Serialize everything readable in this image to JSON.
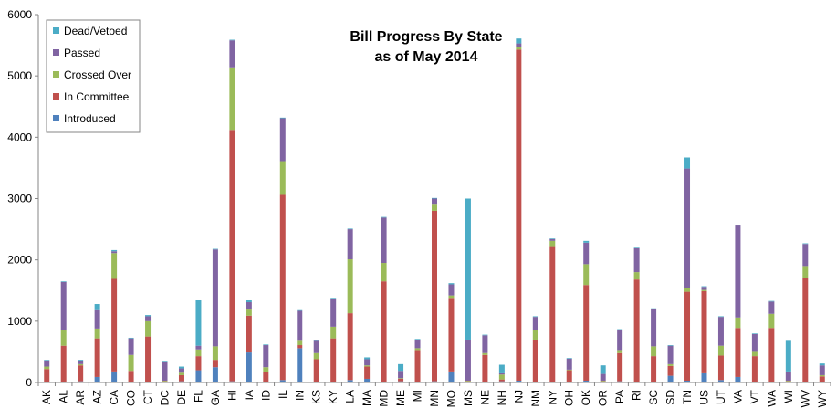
{
  "chart_data": {
    "type": "bar",
    "stacked": true,
    "title": [
      "Bill Progress By State",
      "as of May 2014"
    ],
    "ylim": [
      0,
      6000
    ],
    "yticks": [
      0,
      1000,
      2000,
      3000,
      4000,
      5000,
      6000
    ],
    "grid": false,
    "legend_position": "top-left",
    "categories": [
      "AK",
      "AL",
      "AR",
      "AZ",
      "CA",
      "CO",
      "CT",
      "DC",
      "DE",
      "FL",
      "GA",
      "HI",
      "IA",
      "ID",
      "IL",
      "IN",
      "KS",
      "KY",
      "LA",
      "MA",
      "MD",
      "ME",
      "MI",
      "MN",
      "MO",
      "MS",
      "NE",
      "NH",
      "NJ",
      "NM",
      "NY",
      "OH",
      "OK",
      "OR",
      "PA",
      "RI",
      "SC",
      "SD",
      "TN",
      "US",
      "UT",
      "VA",
      "VT",
      "WA",
      "WI",
      "WV",
      "WY"
    ],
    "series": [
      {
        "name": "Introduced",
        "color": "#4F81BD",
        "values": [
          10,
          10,
          20,
          90,
          180,
          10,
          10,
          10,
          20,
          200,
          250,
          20,
          490,
          10,
          40,
          560,
          10,
          10,
          40,
          60,
          10,
          20,
          10,
          20,
          180,
          10,
          10,
          20,
          30,
          10,
          10,
          10,
          30,
          10,
          20,
          10,
          10,
          110,
          30,
          150,
          40,
          90,
          10,
          10,
          10,
          10,
          10
        ]
      },
      {
        "name": "In Committee",
        "color": "#C0504D",
        "values": [
          210,
          590,
          260,
          630,
          1510,
          180,
          740,
          10,
          100,
          230,
          120,
          4100,
          600,
          160,
          3020,
          50,
          370,
          710,
          1090,
          200,
          1640,
          40,
          520,
          2780,
          1200,
          10,
          440,
          30,
          5400,
          690,
          2200,
          190,
          1560,
          10,
          460,
          1670,
          420,
          160,
          1450,
          1340,
          400,
          800,
          420,
          880,
          10,
          1700,
          90
        ]
      },
      {
        "name": "Crossed Over",
        "color": "#9BBB59",
        "values": [
          40,
          250,
          20,
          160,
          420,
          260,
          250,
          10,
          40,
          110,
          220,
          1020,
          100,
          80,
          550,
          70,
          100,
          190,
          880,
          20,
          300,
          10,
          30,
          100,
          40,
          10,
          30,
          80,
          40,
          150,
          100,
          10,
          340,
          10,
          50,
          120,
          160,
          30,
          60,
          20,
          160,
          170,
          70,
          230,
          10,
          190,
          20
        ]
      },
      {
        "name": "Passed",
        "color": "#8064A2",
        "values": [
          100,
          790,
          50,
          300,
          30,
          270,
          80,
          300,
          70,
          60,
          1580,
          440,
          120,
          360,
          700,
          490,
          200,
          460,
          490,
          100,
          740,
          120,
          140,
          100,
          180,
          670,
          290,
          20,
          60,
          220,
          30,
          180,
          350,
          110,
          330,
          390,
          610,
          300,
          1950,
          50,
          470,
          1500,
          290,
          200,
          150,
          360,
          160
        ]
      },
      {
        "name": "Dead/Vetoed",
        "color": "#4BACC6",
        "values": [
          10,
          10,
          20,
          100,
          20,
          10,
          20,
          10,
          30,
          740,
          10,
          10,
          30,
          10,
          10,
          10,
          10,
          10,
          10,
          30,
          10,
          110,
          10,
          10,
          20,
          2300,
          10,
          140,
          80,
          10,
          10,
          10,
          30,
          140,
          10,
          10,
          10,
          10,
          180,
          10,
          10,
          10,
          10,
          10,
          500,
          10,
          30
        ]
      }
    ]
  }
}
